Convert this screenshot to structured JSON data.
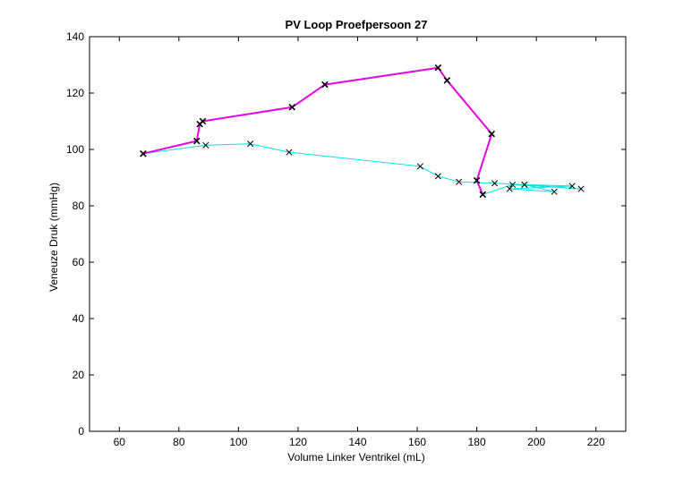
{
  "chart_data": {
    "type": "line",
    "title": "PV Loop Proefpersoon 27",
    "xlabel": "Volume Linker Ventrikel (mL)",
    "ylabel": "Veneuze Druk (mmHg)",
    "xlim": [
      50,
      230
    ],
    "ylim": [
      0,
      140
    ],
    "xticks": [
      60,
      80,
      100,
      120,
      140,
      160,
      180,
      200,
      220
    ],
    "yticks": [
      0,
      20,
      40,
      60,
      80,
      100,
      120,
      140
    ],
    "grid": false,
    "legend": "none",
    "series": [
      {
        "color": "#00e5e5",
        "marker": "x",
        "line_width": 1,
        "x": [
          68,
          89,
          104,
          117,
          161,
          167,
          174,
          186,
          196,
          212,
          191,
          206,
          196,
          215,
          192,
          182
        ],
        "y": [
          98.5,
          101.5,
          102,
          99,
          94,
          90.5,
          88.5,
          88,
          87.5,
          87,
          86,
          85,
          87.5,
          86,
          87.5,
          84
        ]
      },
      {
        "color": "#e600e6",
        "marker": "x",
        "line_width": 2,
        "x": [
          182,
          180,
          185,
          170,
          167,
          129,
          118,
          88,
          87,
          86,
          68
        ],
        "y": [
          84,
          89,
          105.5,
          124.5,
          129,
          123,
          115,
          110,
          109,
          103,
          98.5
        ]
      }
    ]
  }
}
